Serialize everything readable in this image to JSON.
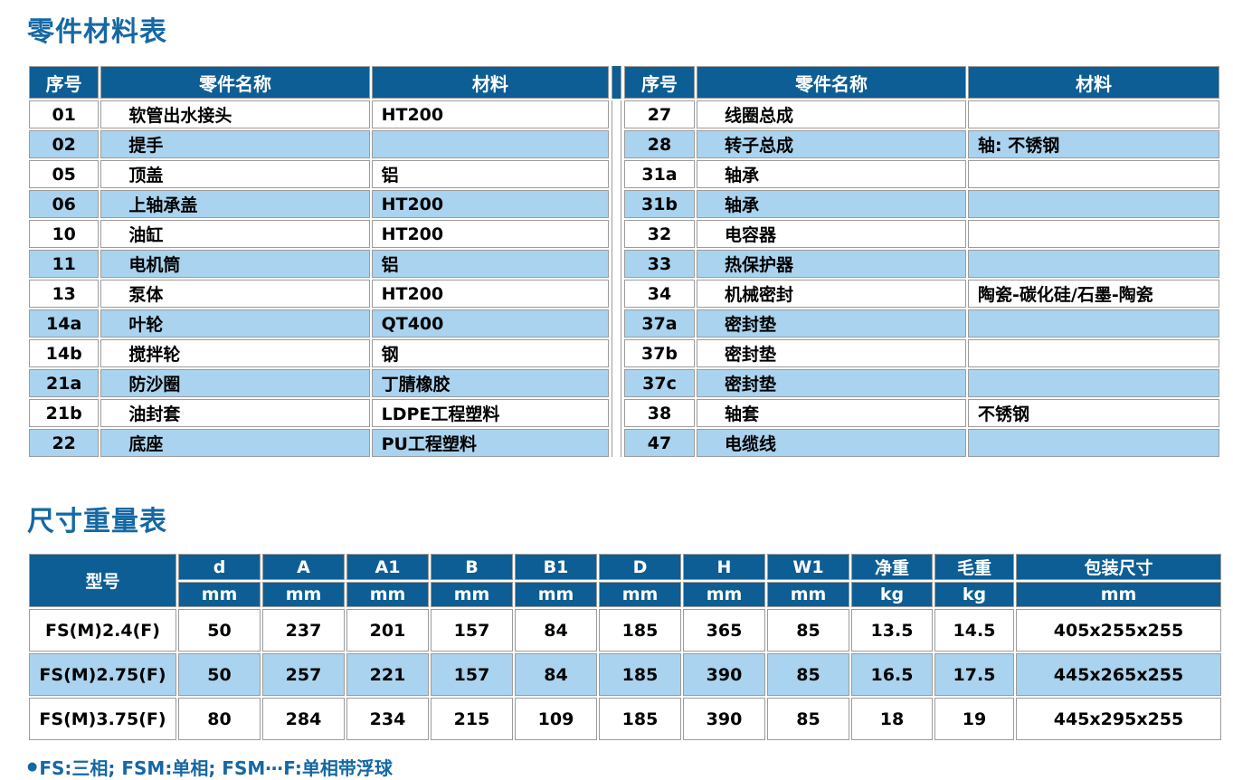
{
  "sections": {
    "parts_title": "零件材料表",
    "dims_title": "尺寸重量表",
    "footnote_bullet": "●",
    "footnote_text": "FS:三相; FSM:单相; FSM⋯F:单相带浮球"
  },
  "colors": {
    "header_blue": "#0d5e94",
    "row_light_blue": "#a9d3ee",
    "title_blue": "#1568a4",
    "grid_border_gray": "#9c9c9c"
  },
  "parts_table": {
    "headers": [
      "序号",
      "零件名称",
      "材料"
    ],
    "left_rows": [
      {
        "no": "01",
        "name": "软管出水接头",
        "material": "HT200"
      },
      {
        "no": "02",
        "name": "提手",
        "material": ""
      },
      {
        "no": "05",
        "name": "顶盖",
        "material": "铝"
      },
      {
        "no": "06",
        "name": "上轴承盖",
        "material": "HT200"
      },
      {
        "no": "10",
        "name": "油缸",
        "material": "HT200"
      },
      {
        "no": "11",
        "name": "电机筒",
        "material": "铝"
      },
      {
        "no": "13",
        "name": "泵体",
        "material": "HT200"
      },
      {
        "no": "14a",
        "name": "叶轮",
        "material": "QT400"
      },
      {
        "no": "14b",
        "name": "搅拌轮",
        "material": "钢"
      },
      {
        "no": "21a",
        "name": "防沙圈",
        "material": "丁腈橡胶"
      },
      {
        "no": "21b",
        "name": "油封套",
        "material": "LDPE工程塑料"
      },
      {
        "no": "22",
        "name": "底座",
        "material": "PU工程塑料"
      }
    ],
    "right_rows": [
      {
        "no": "27",
        "name": "线圈总成",
        "material": ""
      },
      {
        "no": "28",
        "name": "转子总成",
        "material": "轴: 不锈钢"
      },
      {
        "no": "31a",
        "name": "轴承",
        "material": ""
      },
      {
        "no": "31b",
        "name": "轴承",
        "material": ""
      },
      {
        "no": "32",
        "name": "电容器",
        "material": ""
      },
      {
        "no": "33",
        "name": "热保护器",
        "material": ""
      },
      {
        "no": "34",
        "name": "机械密封",
        "material": "陶瓷-碳化硅/石墨-陶瓷"
      },
      {
        "no": "37a",
        "name": "密封垫",
        "material": ""
      },
      {
        "no": "37b",
        "name": "密封垫",
        "material": ""
      },
      {
        "no": "37c",
        "name": "密封垫",
        "material": ""
      },
      {
        "no": "38",
        "name": "轴套",
        "material": "不锈钢"
      },
      {
        "no": "47",
        "name": "电缆线",
        "material": ""
      }
    ]
  },
  "dimensions_table": {
    "model_header": "型号",
    "columns": [
      {
        "label": "d",
        "unit": "mm"
      },
      {
        "label": "A",
        "unit": "mm"
      },
      {
        "label": "A1",
        "unit": "mm"
      },
      {
        "label": "B",
        "unit": "mm"
      },
      {
        "label": "B1",
        "unit": "mm"
      },
      {
        "label": "D",
        "unit": "mm"
      },
      {
        "label": "H",
        "unit": "mm"
      },
      {
        "label": "W1",
        "unit": "mm"
      },
      {
        "label": "净重",
        "unit": "kg"
      },
      {
        "label": "毛重",
        "unit": "kg"
      },
      {
        "label": "包装尺寸",
        "unit": "mm"
      }
    ],
    "rows": [
      {
        "model": "FS(M)2.4(F)",
        "values": [
          "50",
          "237",
          "201",
          "157",
          "84",
          "185",
          "365",
          "85",
          "13.5",
          "14.5",
          "405x255x255"
        ]
      },
      {
        "model": "FS(M)2.75(F)",
        "values": [
          "50",
          "257",
          "221",
          "157",
          "84",
          "185",
          "390",
          "85",
          "16.5",
          "17.5",
          "445x265x255"
        ]
      },
      {
        "model": "FS(M)3.75(F)",
        "values": [
          "80",
          "284",
          "234",
          "215",
          "109",
          "185",
          "390",
          "85",
          "18",
          "19",
          "445x295x255"
        ]
      }
    ]
  }
}
